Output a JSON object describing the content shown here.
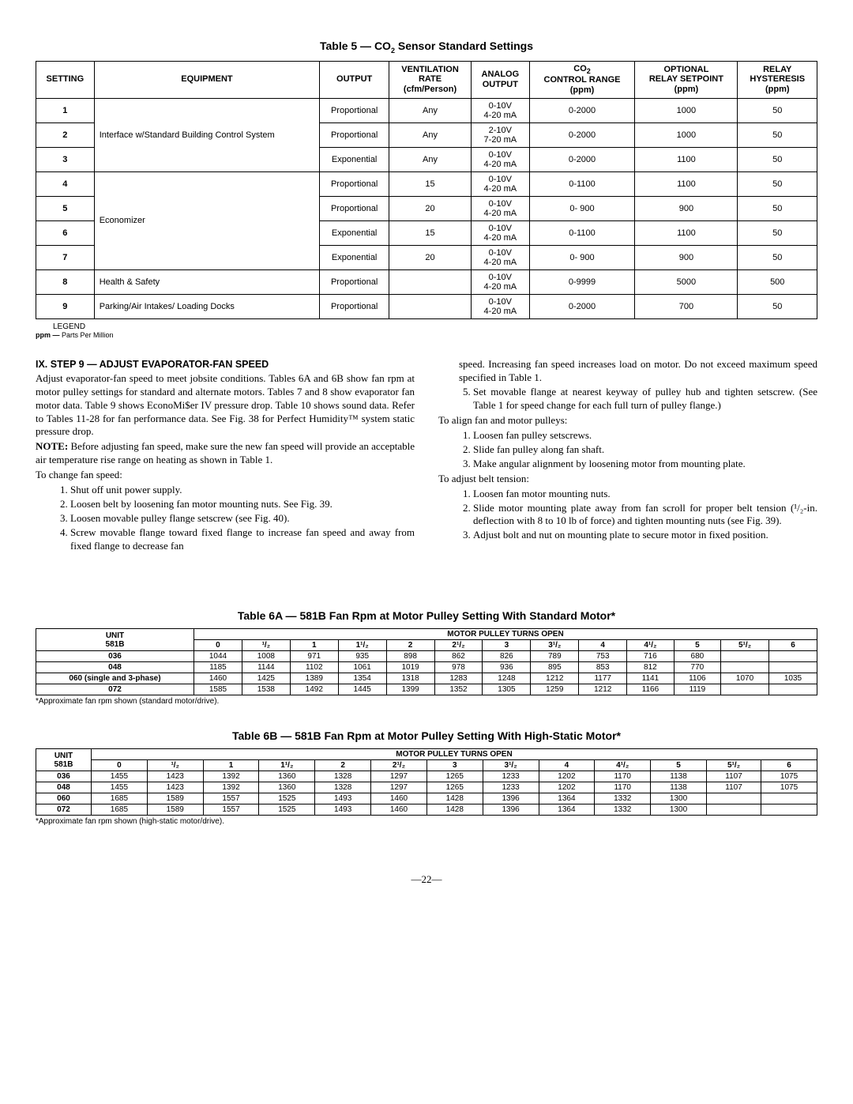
{
  "table5": {
    "title": "Table 5 — CO₂ Sensor Standard Settings",
    "headers": [
      "SETTING",
      "EQUIPMENT",
      "OUTPUT",
      "VENTILATION\nRATE\n(cfm/Person)",
      "ANALOG\nOUTPUT",
      "CO₂\nCONTROL RANGE\n(ppm)",
      "OPTIONAL\nRELAY SETPOINT\n(ppm)",
      "RELAY\nHYSTERESIS\n(ppm)"
    ],
    "rows": [
      {
        "s": "1",
        "eq": "Interface w/Standard Building Control System",
        "span": 3,
        "out": "Proportional",
        "rate": "Any",
        "ao": "0-10V\n4-20 mA",
        "cr": "0-2000",
        "rs": "1000",
        "rh": "50"
      },
      {
        "s": "2",
        "out": "Proportional",
        "rate": "Any",
        "ao": "2-10V\n7-20 mA",
        "cr": "0-2000",
        "rs": "1000",
        "rh": "50"
      },
      {
        "s": "3",
        "out": "Exponential",
        "rate": "Any",
        "ao": "0-10V\n4-20 mA",
        "cr": "0-2000",
        "rs": "1100",
        "rh": "50"
      },
      {
        "s": "4",
        "eq": "Economizer",
        "span": 4,
        "out": "Proportional",
        "rate": "15",
        "ao": "0-10V\n4-20 mA",
        "cr": "0-1100",
        "rs": "1100",
        "rh": "50"
      },
      {
        "s": "5",
        "out": "Proportional",
        "rate": "20",
        "ao": "0-10V\n4-20 mA",
        "cr": "0-  900",
        "rs": "900",
        "rh": "50"
      },
      {
        "s": "6",
        "out": "Exponential",
        "rate": "15",
        "ao": "0-10V\n4-20 mA",
        "cr": "0-1100",
        "rs": "1100",
        "rh": "50"
      },
      {
        "s": "7",
        "out": "Exponential",
        "rate": "20",
        "ao": "0-10V\n4-20 mA",
        "cr": "0-  900",
        "rs": "900",
        "rh": "50"
      },
      {
        "s": "8",
        "eq": "Health & Safety",
        "span": 1,
        "out": "Proportional",
        "rate": "",
        "ao": "0-10V\n4-20 mA",
        "cr": "0-9999",
        "rs": "5000",
        "rh": "500"
      },
      {
        "s": "9",
        "eq": "Parking/Air Intakes/ Loading Docks",
        "span": 1,
        "out": "Proportional",
        "rate": "",
        "ao": "0-10V\n4-20 mA",
        "cr": "0-2000",
        "rs": "700",
        "rh": "50"
      }
    ],
    "legend": "LEGEND",
    "ppm_label": "ppm —",
    "ppm_text": "Parts Per Million"
  },
  "section": {
    "heading": "IX.  STEP 9 — ADJUST EVAPORATOR-FAN SPEED",
    "p1": "Adjust evaporator-fan speed to meet jobsite conditions. Tables 6A and 6B show fan rpm at motor pulley settings for standard and alternate motors. Tables 7 and 8 show evaporator fan motor data. Table 9 shows EconoMi$er IV pressure drop. Table 10 shows sound data. Refer to Tables 11-28 for fan performance data. See Fig. 38 for Perfect Humidity™ system static pressure drop.",
    "p2a": "NOTE:",
    "p2b": "Before adjusting fan speed, make sure the new fan speed will provide an acceptable air temperature rise range on heating as shown in Table 1.",
    "p3": "To change fan speed:",
    "l1": [
      "Shut off unit power supply.",
      "Loosen belt by loosening fan motor mounting nuts. See Fig. 39.",
      "Loosen movable pulley flange setscrew (see Fig. 40).",
      "Screw movable flange toward fixed flange to increase fan speed and away from fixed flange to decrease fan"
    ],
    "r_top": "speed. Increasing fan speed increases load on motor. Do not exceed maximum speed specified in Table 1.",
    "l2": [
      "Set movable flange at nearest keyway of pulley hub and tighten setscrew. (See Table 1 for speed change for each full turn of pulley flange.)"
    ],
    "p4": "To align fan and motor pulleys:",
    "l3": [
      "Loosen fan pulley setscrews.",
      "Slide fan pulley along fan shaft.",
      "Make angular alignment by loosening motor from mounting plate."
    ],
    "p5": "To adjust belt tension:",
    "l4": [
      "Loosen fan motor mounting nuts.",
      "Slide motor mounting plate away from fan scroll for proper belt tension (¹/₂-in. deflection with 8 to 10 lb of force) and tighten mounting nuts (see Fig. 39).",
      "Adjust bolt and nut on mounting plate to secure motor in fixed position."
    ]
  },
  "table6a": {
    "title": "Table 6A — 581B Fan Rpm at Motor Pulley Setting With Standard Motor*",
    "unit_hdr": "UNIT\n581B",
    "top": "MOTOR PULLEY TURNS OPEN",
    "cols": [
      "0",
      "¹/₂",
      "1",
      "1¹/₂",
      "2",
      "2¹/₂",
      "3",
      "3¹/₂",
      "4",
      "4¹/₂",
      "5",
      "5¹/₂",
      "6"
    ],
    "rows": [
      {
        "u": "036",
        "v": [
          "1044",
          "1008",
          "971",
          "935",
          "898",
          "862",
          "826",
          "789",
          "753",
          "716",
          "680",
          "",
          ""
        ]
      },
      {
        "u": "048",
        "v": [
          "1185",
          "1144",
          "1102",
          "1061",
          "1019",
          "978",
          "936",
          "895",
          "853",
          "812",
          "770",
          "",
          ""
        ]
      },
      {
        "u": "060 (single and 3-phase)",
        "v": [
          "1460",
          "1425",
          "1389",
          "1354",
          "1318",
          "1283",
          "1248",
          "1212",
          "1177",
          "1141",
          "1106",
          "1070",
          "1035"
        ]
      },
      {
        "u": "072",
        "v": [
          "1585",
          "1538",
          "1492",
          "1445",
          "1399",
          "1352",
          "1305",
          "1259",
          "1212",
          "1166",
          "1119",
          "",
          ""
        ]
      }
    ],
    "foot": "*Approximate fan rpm shown (standard motor/drive)."
  },
  "table6b": {
    "title": "Table 6B — 581B Fan Rpm at Motor Pulley Setting With High-Static Motor*",
    "unit_hdr": "UNIT\n581B",
    "top": "MOTOR PULLEY TURNS OPEN",
    "cols": [
      "0",
      "¹/₂",
      "1",
      "1¹/₂",
      "2",
      "2¹/₂",
      "3",
      "3¹/₂",
      "4",
      "4¹/₂",
      "5",
      "5¹/₂",
      "6"
    ],
    "rows": [
      {
        "u": "036",
        "v": [
          "1455",
          "1423",
          "1392",
          "1360",
          "1328",
          "1297",
          "1265",
          "1233",
          "1202",
          "1170",
          "1138",
          "1107",
          "1075"
        ]
      },
      {
        "u": "048",
        "v": [
          "1455",
          "1423",
          "1392",
          "1360",
          "1328",
          "1297",
          "1265",
          "1233",
          "1202",
          "1170",
          "1138",
          "1107",
          "1075"
        ]
      },
      {
        "u": "060",
        "v": [
          "1685",
          "1589",
          "1557",
          "1525",
          "1493",
          "1460",
          "1428",
          "1396",
          "1364",
          "1332",
          "1300",
          "",
          ""
        ]
      },
      {
        "u": "072",
        "v": [
          "1685",
          "1589",
          "1557",
          "1525",
          "1493",
          "1460",
          "1428",
          "1396",
          "1364",
          "1332",
          "1300",
          "",
          ""
        ]
      }
    ],
    "foot": "*Approximate fan rpm shown (high-static motor/drive)."
  },
  "page": "—22—"
}
